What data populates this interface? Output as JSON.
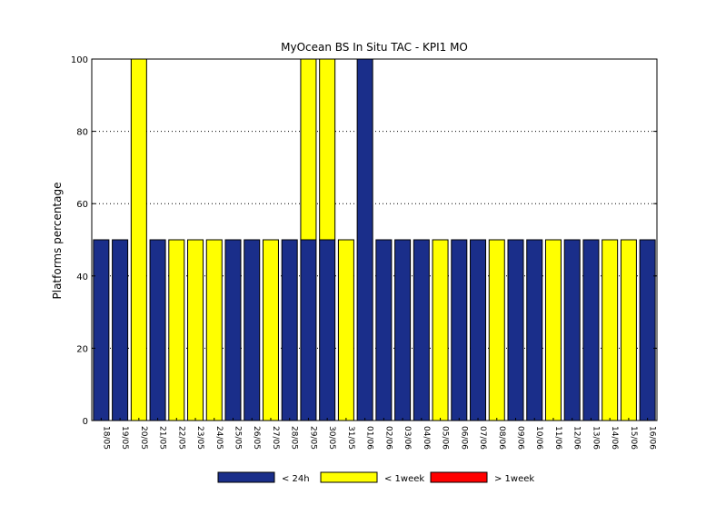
{
  "chart_data": {
    "type": "bar",
    "stacked": true,
    "title": "MyOcean  BS In Situ TAC - KPI1  MO",
    "ylabel": "Platforms percentage",
    "xlabel": "",
    "ylim": [
      0,
      100
    ],
    "yticks": [
      0,
      20,
      40,
      60,
      80,
      100
    ],
    "grid": "horizontal-dotted",
    "legend_position": "bottom",
    "categories": [
      "18/05",
      "19/05",
      "20/05",
      "21/05",
      "22/05",
      "23/05",
      "24/05",
      "25/05",
      "26/05",
      "27/05",
      "28/05",
      "29/05",
      "30/05",
      "31/05",
      "01/06",
      "02/06",
      "03/06",
      "04/06",
      "05/06",
      "06/06",
      "07/06",
      "08/06",
      "09/06",
      "10/06",
      "11/06",
      "12/06",
      "13/06",
      "14/06",
      "15/06",
      "16/06"
    ],
    "series": [
      {
        "name": "< 24h",
        "color": "#1a2e8a",
        "values": [
          50,
          50,
          0,
          50,
          0,
          0,
          0,
          50,
          50,
          0,
          50,
          50,
          50,
          0,
          100,
          50,
          50,
          50,
          0,
          50,
          50,
          0,
          50,
          50,
          0,
          50,
          50,
          0,
          0,
          50
        ]
      },
      {
        "name": "< 1week",
        "color": "#ffff00",
        "values": [
          0,
          0,
          100,
          0,
          50,
          50,
          50,
          0,
          0,
          50,
          0,
          50,
          50,
          50,
          0,
          0,
          0,
          0,
          50,
          0,
          0,
          50,
          0,
          0,
          50,
          0,
          0,
          50,
          50,
          0
        ]
      },
      {
        "name": "> 1week",
        "color": "#ff0000",
        "values": [
          0,
          0,
          0,
          0,
          0,
          0,
          0,
          0,
          0,
          0,
          0,
          0,
          0,
          0,
          0,
          0,
          0,
          0,
          0,
          0,
          0,
          0,
          0,
          0,
          0,
          0,
          0,
          0,
          0,
          0
        ]
      }
    ]
  }
}
